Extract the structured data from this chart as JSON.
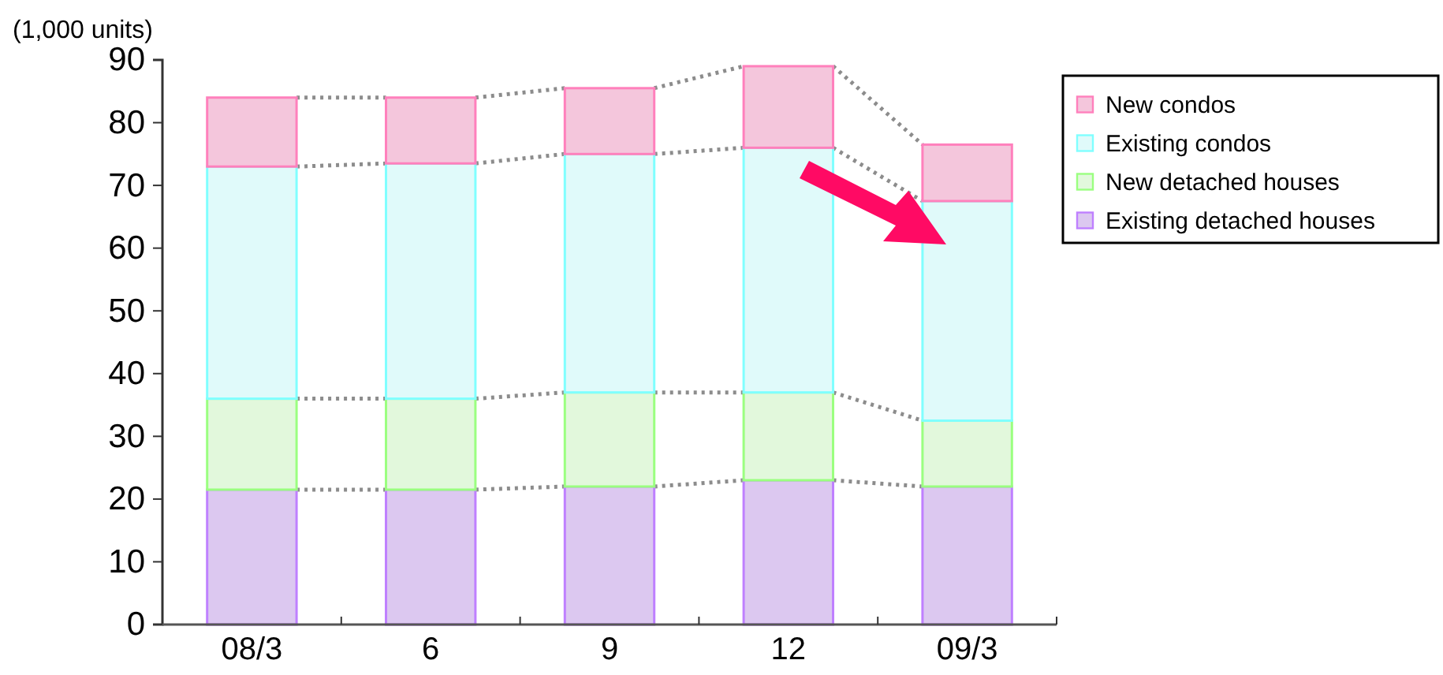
{
  "chart_data": {
    "type": "bar",
    "stacked": true,
    "ylabel": "(1,000 units)",
    "categories": [
      "08/3",
      "6",
      "9",
      "12",
      "09/3"
    ],
    "series": [
      {
        "name": "Existing detached houses",
        "color": "#dcc8f0",
        "values": [
          21.5,
          21.5,
          22,
          23,
          22
        ]
      },
      {
        "name": "New detached houses",
        "color": "#e2f8dc",
        "values": [
          14.5,
          14.5,
          15,
          14,
          10.5
        ]
      },
      {
        "name": "Existing condos",
        "color": "#e0fafa",
        "values": [
          37,
          37.5,
          38,
          39,
          35
        ]
      },
      {
        "name": "New condos",
        "color": "#f4c6dc",
        "values": [
          11,
          10.5,
          10.5,
          13,
          9
        ]
      }
    ],
    "ylim": [
      0,
      90
    ],
    "yticks": [
      0,
      10,
      20,
      30,
      40,
      50,
      60,
      70,
      80,
      90
    ],
    "legend": "top right"
  }
}
